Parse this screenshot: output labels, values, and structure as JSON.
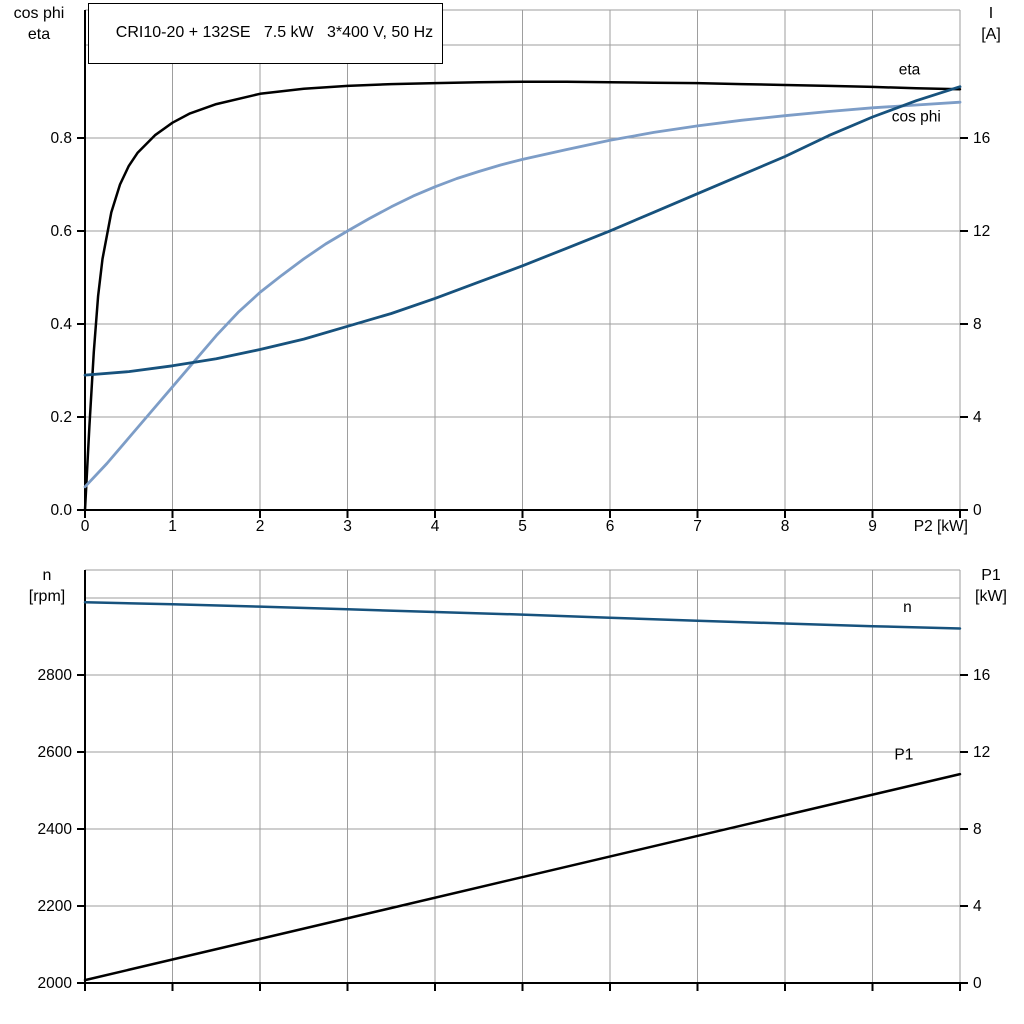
{
  "colors": {
    "black": "#000000",
    "dark_blue": "#17527d",
    "light_blue": "#7d9dc7",
    "grid": "#9e9e9e",
    "axis": "#000000",
    "background": "#ffffff"
  },
  "title_box": {
    "text": "CRI10-20 + 132SE   7.5 kW   3*400 V, 50 Hz"
  },
  "chart_data": [
    {
      "type": "line",
      "title": "CRI10-20 + 132SE   7.5 kW   3*400 V, 50 Hz",
      "xlim": [
        0,
        10
      ],
      "x_ticks": [
        0,
        1,
        2,
        3,
        4,
        5,
        6,
        7,
        8,
        9,
        10
      ],
      "x_tick_labels": [
        "0",
        "1",
        "2",
        "3",
        "4",
        "5",
        "6",
        "7",
        "8",
        "9"
      ],
      "x_axis_label": "P2 [kW]",
      "x_gridlines": [
        1,
        2,
        3,
        4,
        5,
        6,
        7,
        8,
        9,
        10
      ],
      "grid": true,
      "legend_position": "inline-right",
      "left_axis": {
        "title_lines": [
          "cos phi",
          "eta"
        ],
        "lim": [
          0,
          1.0753
        ],
        "ticks": [
          0,
          0.2,
          0.4,
          0.6,
          0.8
        ],
        "tick_labels": [
          "0.0",
          "0.2",
          "0.4",
          "0.6",
          "0.8"
        ],
        "extra_gridlines": [
          1.0
        ]
      },
      "right_axis": {
        "title_lines": [
          "I",
          "[A]"
        ],
        "lim": [
          0,
          21.5
        ],
        "ticks": [
          0,
          4,
          8,
          12,
          16
        ],
        "tick_labels": [
          "0",
          "4",
          "8",
          "12",
          "16"
        ],
        "extra_gridlines": []
      },
      "series": [
        {
          "name": "eta",
          "axis": "left",
          "color": "#000000",
          "width": 2.5,
          "label": {
            "text": "eta",
            "x": 9.3,
            "y": 0.937
          },
          "points": [
            [
              0,
              0
            ],
            [
              0.05,
              0.18
            ],
            [
              0.1,
              0.34
            ],
            [
              0.15,
              0.46
            ],
            [
              0.2,
              0.54
            ],
            [
              0.3,
              0.64
            ],
            [
              0.4,
              0.7
            ],
            [
              0.5,
              0.74
            ],
            [
              0.6,
              0.768
            ],
            [
              0.8,
              0.806
            ],
            [
              1,
              0.833
            ],
            [
              1.2,
              0.853
            ],
            [
              1.5,
              0.873
            ],
            [
              2,
              0.895
            ],
            [
              2.5,
              0.906
            ],
            [
              3,
              0.912
            ],
            [
              3.5,
              0.916
            ],
            [
              4,
              0.918
            ],
            [
              4.5,
              0.92
            ],
            [
              5,
              0.921
            ],
            [
              5.5,
              0.921
            ],
            [
              6,
              0.92
            ],
            [
              6.5,
              0.919
            ],
            [
              7,
              0.918
            ],
            [
              7.5,
              0.916
            ],
            [
              8,
              0.914
            ],
            [
              8.5,
              0.912
            ],
            [
              9,
              0.91
            ],
            [
              9.5,
              0.907
            ],
            [
              10,
              0.905
            ]
          ]
        },
        {
          "name": "cos phi",
          "axis": "left",
          "color": "#7d9dc7",
          "width": 2.8,
          "label": {
            "text": "cos phi",
            "x": 9.22,
            "y": 0.836
          },
          "points": [
            [
              0,
              0.05
            ],
            [
              0.25,
              0.1
            ],
            [
              0.5,
              0.155
            ],
            [
              0.75,
              0.21
            ],
            [
              1,
              0.265
            ],
            [
              1.25,
              0.32
            ],
            [
              1.5,
              0.375
            ],
            [
              1.75,
              0.425
            ],
            [
              2,
              0.468
            ],
            [
              2.25,
              0.505
            ],
            [
              2.5,
              0.54
            ],
            [
              2.75,
              0.572
            ],
            [
              3,
              0.6
            ],
            [
              3.25,
              0.627
            ],
            [
              3.5,
              0.652
            ],
            [
              3.75,
              0.675
            ],
            [
              4,
              0.695
            ],
            [
              4.25,
              0.713
            ],
            [
              4.5,
              0.728
            ],
            [
              4.75,
              0.742
            ],
            [
              5,
              0.754
            ],
            [
              5.5,
              0.775
            ],
            [
              6,
              0.795
            ],
            [
              6.5,
              0.812
            ],
            [
              7,
              0.826
            ],
            [
              7.5,
              0.838
            ],
            [
              8,
              0.848
            ],
            [
              8.5,
              0.857
            ],
            [
              9,
              0.865
            ],
            [
              9.5,
              0.871
            ],
            [
              10,
              0.877
            ]
          ]
        },
        {
          "name": "I",
          "axis": "right",
          "color": "#17527d",
          "width": 2.8,
          "points": [
            [
              0,
              5.8
            ],
            [
              0.5,
              5.95
            ],
            [
              1,
              6.2
            ],
            [
              1.5,
              6.5
            ],
            [
              2,
              6.9
            ],
            [
              2.5,
              7.35
            ],
            [
              3,
              7.9
            ],
            [
              3.5,
              8.45
            ],
            [
              4,
              9.1
            ],
            [
              4.5,
              9.8
            ],
            [
              5,
              10.5
            ],
            [
              5.5,
              11.25
            ],
            [
              6,
              12.0
            ],
            [
              6.5,
              12.8
            ],
            [
              7,
              13.6
            ],
            [
              7.5,
              14.4
            ],
            [
              8,
              15.2
            ],
            [
              8.5,
              16.1
            ],
            [
              9,
              16.9
            ],
            [
              9.5,
              17.6
            ],
            [
              10,
              18.2
            ]
          ]
        }
      ]
    },
    {
      "type": "line",
      "title": "",
      "xlim": [
        0,
        10
      ],
      "x_ticks": [
        0,
        1,
        2,
        3,
        4,
        5,
        6,
        7,
        8,
        9,
        10
      ],
      "x_tick_labels": [],
      "x_axis_label": "",
      "x_gridlines": [
        1,
        2,
        3,
        4,
        5,
        6,
        7,
        8,
        9,
        10
      ],
      "grid": true,
      "legend_position": "inline-right",
      "left_axis": {
        "title_lines": [
          "n",
          "[rpm]"
        ],
        "lim": [
          2000,
          3073
        ],
        "ticks": [
          2000,
          2200,
          2400,
          2600,
          2800
        ],
        "tick_labels": [
          "2000",
          "2200",
          "2400",
          "2600",
          "2800"
        ],
        "extra_gridlines": [
          3000
        ]
      },
      "right_axis": {
        "title_lines": [
          "P1",
          "[kW]"
        ],
        "lim": [
          0,
          21.45
        ],
        "ticks": [
          0,
          4,
          8,
          12,
          16
        ],
        "tick_labels": [
          "0",
          "4",
          "8",
          "12",
          "16"
        ],
        "extra_gridlines": []
      },
      "series": [
        {
          "name": "n",
          "axis": "left",
          "color": "#17527d",
          "width": 2.5,
          "label": {
            "text": "n",
            "x": 9.35,
            "y": 2964
          },
          "points": [
            [
              0,
              2989
            ],
            [
              1,
              2984
            ],
            [
              2,
              2978
            ],
            [
              3,
              2971
            ],
            [
              4,
              2964
            ],
            [
              5,
              2957
            ],
            [
              6,
              2949
            ],
            [
              7,
              2941
            ],
            [
              8,
              2934
            ],
            [
              9,
              2927
            ],
            [
              10,
              2921
            ]
          ]
        },
        {
          "name": "P1",
          "axis": "right",
          "color": "#000000",
          "width": 2.5,
          "label": {
            "text": "P1",
            "x": 9.25,
            "y": 11.6
          },
          "points": [
            [
              0,
              0.15
            ],
            [
              10,
              10.85
            ]
          ]
        }
      ]
    }
  ]
}
